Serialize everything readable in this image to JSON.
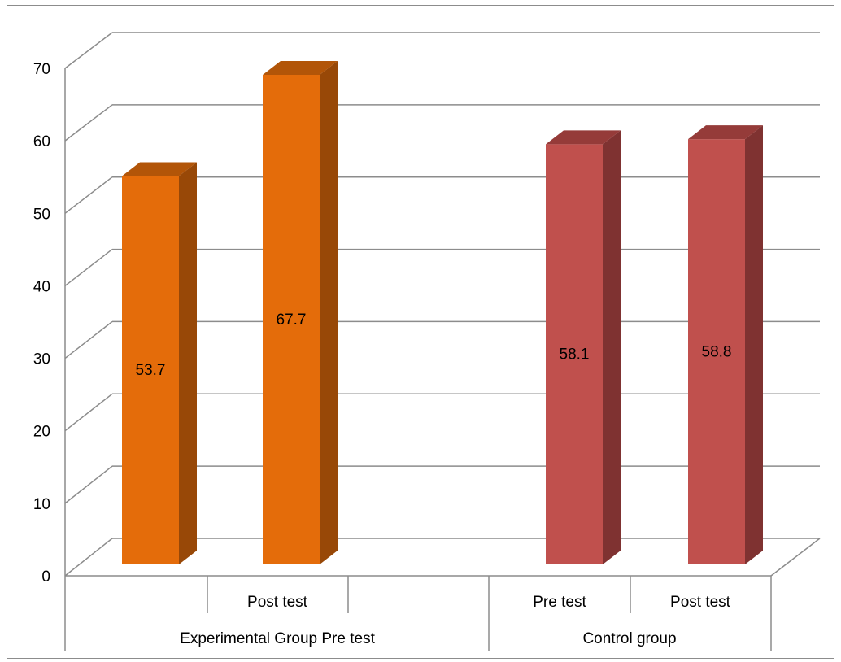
{
  "chart_data": {
    "type": "bar",
    "style": "3d-column",
    "groups": [
      {
        "label": "Experimental Group  Pre test",
        "bars": [
          {
            "category": "",
            "value": 53.7,
            "data_label": "53.7"
          },
          {
            "category": "Post test",
            "value": 67.7,
            "data_label": "67.7"
          }
        ],
        "color": "#e46c0a",
        "side_color": "#984807",
        "top_color": "#b25508"
      },
      {
        "label": "Control group",
        "bars": [
          {
            "category": "Pre test",
            "value": 58.1,
            "data_label": "58.1"
          },
          {
            "category": "Post test",
            "value": 58.8,
            "data_label": "58.8"
          }
        ],
        "color": "#c0504d",
        "side_color": "#7f3231",
        "top_color": "#953b39"
      }
    ],
    "y_ticks": [
      "0",
      "10",
      "20",
      "30",
      "40",
      "50",
      "60",
      "70"
    ],
    "ylim": [
      0,
      70
    ],
    "grid": true,
    "legend": "none"
  }
}
